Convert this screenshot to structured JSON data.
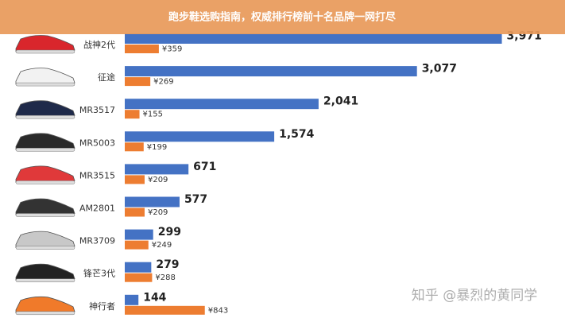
{
  "banner": "跑步鞋选购指南，权威排行榜前十名品牌一网打尽",
  "watermark": "知乎 @暴烈的黄同学",
  "chart_data": {
    "type": "bar",
    "orientation": "horizontal",
    "categories": [
      "战神2代",
      "征途",
      "MR3517",
      "MR5003",
      "MR3515",
      "AM2801",
      "MR3709",
      "锋芒3代",
      "神行者"
    ],
    "xlim": [
      0,
      4000
    ],
    "series": [
      {
        "color": "#4472c4",
        "values": [
          3971,
          3077,
          2041,
          1574,
          671,
          577,
          299,
          279,
          144
        ],
        "value_labels": [
          "3,971",
          "3,077",
          "2,041",
          "1,574",
          "671",
          "577",
          "299",
          "279",
          "144"
        ]
      },
      {
        "color": "#ed7d31",
        "values": [
          359,
          269,
          155,
          199,
          209,
          209,
          249,
          288,
          843
        ],
        "value_labels": [
          "¥359",
          "¥269",
          "¥155",
          "¥199",
          "¥209",
          "¥209",
          "¥249",
          "¥288",
          "¥843"
        ]
      }
    ]
  }
}
